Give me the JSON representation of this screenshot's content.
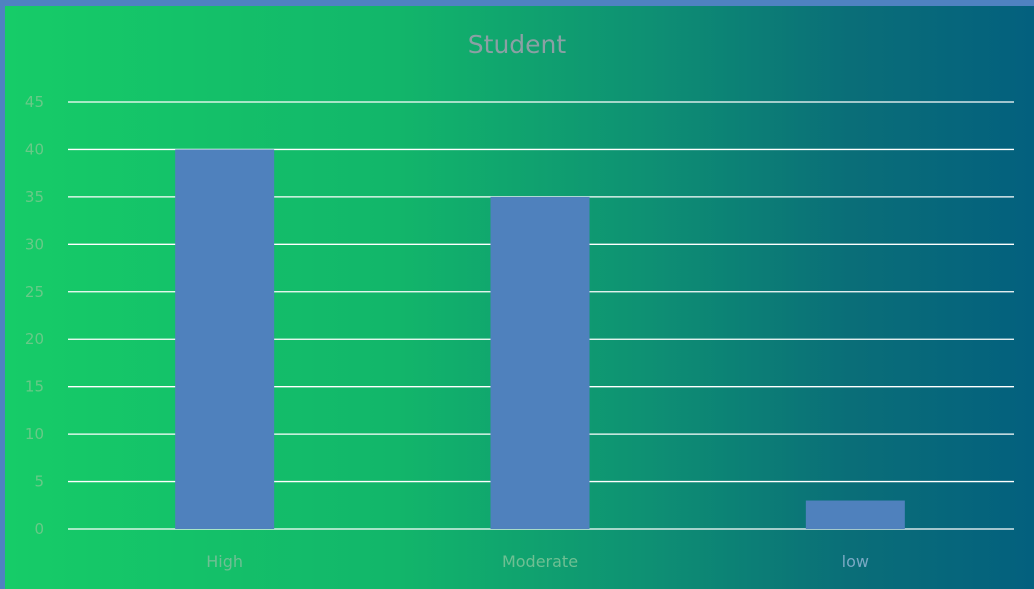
{
  "chart_data": {
    "type": "bar",
    "title": "Student",
    "categories": [
      "High",
      "Moderate",
      "low"
    ],
    "series": [
      {
        "values": [
          40,
          35,
          3
        ]
      }
    ],
    "xlabel": "",
    "ylabel": "",
    "ylim": [
      0,
      45
    ],
    "yticks": [
      "0",
      "5",
      "10",
      "15",
      "20",
      "25",
      "30",
      "35",
      "40",
      "45"
    ],
    "grid": true,
    "legend": "none",
    "colors": {
      "bar": "#4f81bd",
      "gridline": "#ffffff",
      "title": "#8ba0a4"
    }
  }
}
